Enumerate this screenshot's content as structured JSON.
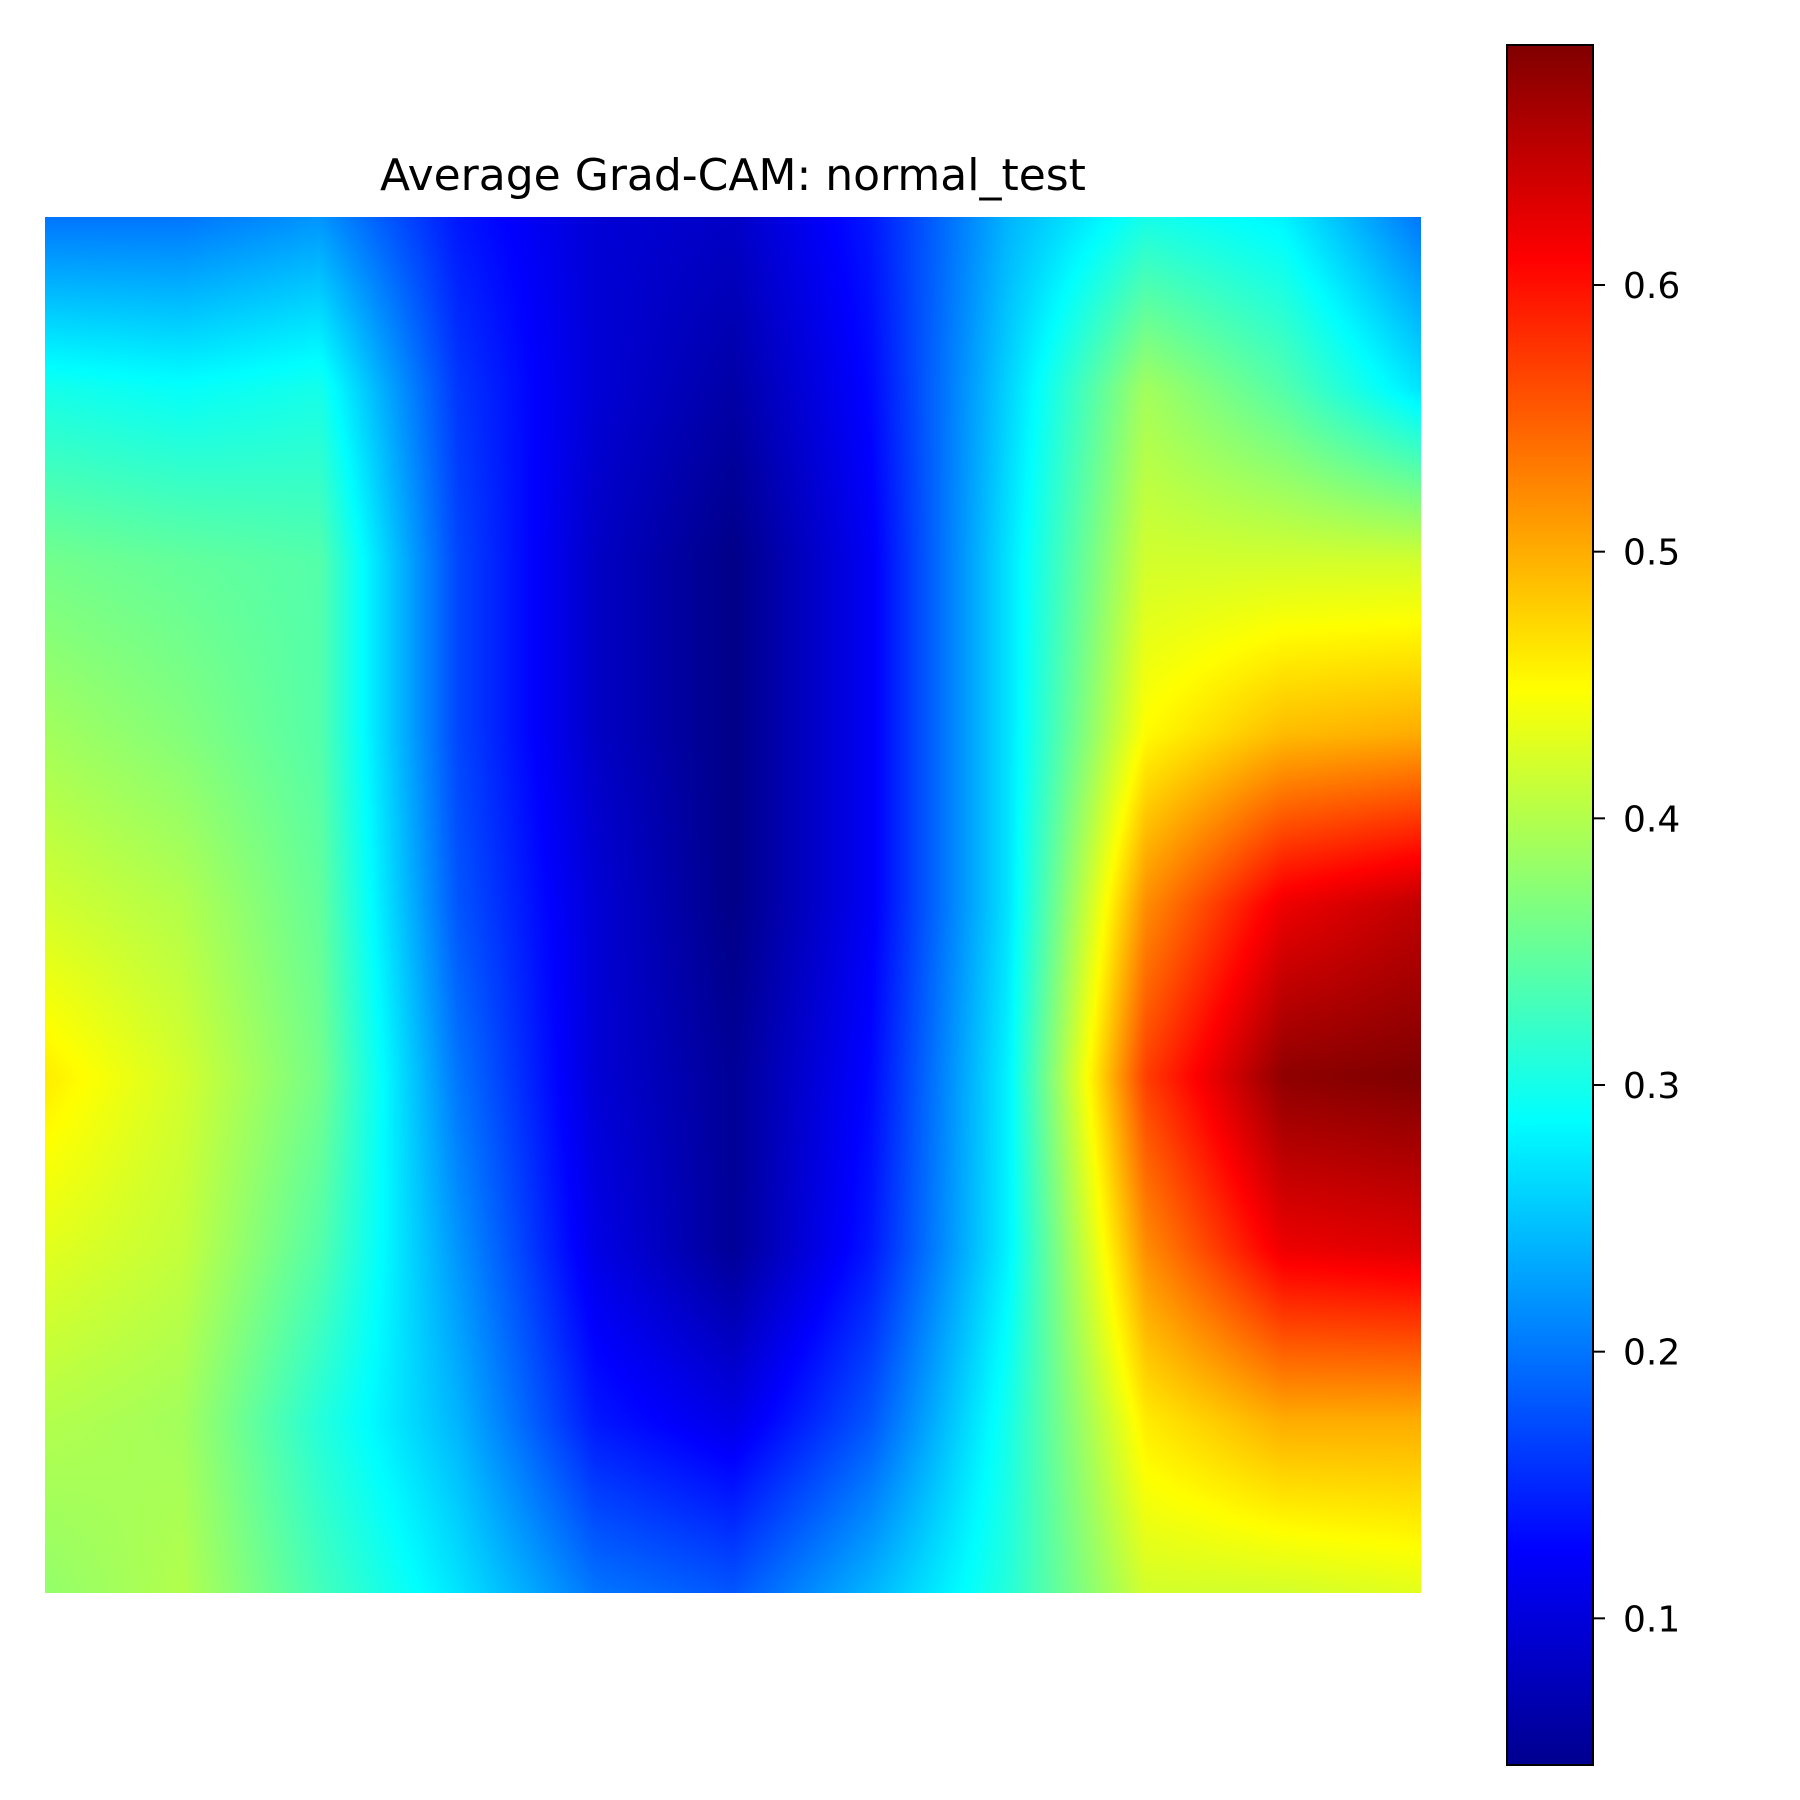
{
  "chart_data": {
    "type": "heatmap",
    "title": "Average Grad-CAM: normal_test",
    "xlabel": "",
    "ylabel": "",
    "axes_visible": false,
    "colormap": "jet",
    "value_range": [
      0.045,
      0.69
    ],
    "colorbar": {
      "ticks": [
        0.1,
        0.2,
        0.3,
        0.4,
        0.5,
        0.6
      ],
      "tick_labels": [
        "0.1",
        "0.2",
        "0.3",
        "0.4",
        "0.5",
        "0.6"
      ],
      "placement": "right"
    },
    "grid_values": [
      [
        0.2,
        0.2,
        0.22,
        0.14,
        0.1,
        0.09,
        0.14,
        0.24,
        0.3,
        0.28,
        0.2
      ],
      [
        0.3,
        0.29,
        0.3,
        0.16,
        0.1,
        0.07,
        0.13,
        0.26,
        0.39,
        0.34,
        0.27
      ],
      [
        0.36,
        0.35,
        0.34,
        0.17,
        0.09,
        0.05,
        0.12,
        0.27,
        0.42,
        0.42,
        0.42
      ],
      [
        0.39,
        0.37,
        0.34,
        0.17,
        0.09,
        0.05,
        0.12,
        0.27,
        0.45,
        0.49,
        0.5
      ],
      [
        0.42,
        0.4,
        0.35,
        0.18,
        0.1,
        0.05,
        0.12,
        0.27,
        0.52,
        0.62,
        0.65
      ],
      [
        0.46,
        0.42,
        0.36,
        0.2,
        0.1,
        0.06,
        0.13,
        0.28,
        0.57,
        0.68,
        0.69
      ],
      [
        0.43,
        0.41,
        0.34,
        0.22,
        0.11,
        0.06,
        0.14,
        0.28,
        0.52,
        0.62,
        0.63
      ],
      [
        0.4,
        0.39,
        0.31,
        0.24,
        0.14,
        0.11,
        0.18,
        0.3,
        0.46,
        0.5,
        0.5
      ],
      [
        0.38,
        0.4,
        0.33,
        0.27,
        0.2,
        0.18,
        0.24,
        0.31,
        0.42,
        0.42,
        0.43
      ]
    ]
  }
}
